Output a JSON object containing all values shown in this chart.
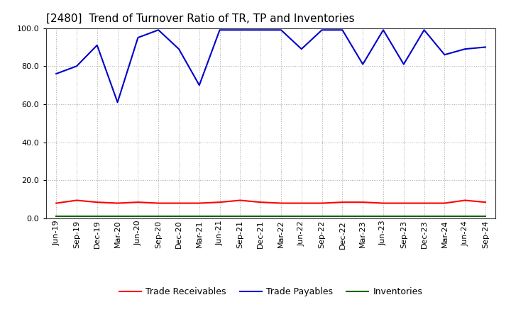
{
  "title": "[2480]  Trend of Turnover Ratio of TR, TP and Inventories",
  "x_labels": [
    "Jun-19",
    "Sep-19",
    "Dec-19",
    "Mar-20",
    "Jun-20",
    "Sep-20",
    "Dec-20",
    "Mar-21",
    "Jun-21",
    "Sep-21",
    "Dec-21",
    "Mar-22",
    "Jun-22",
    "Sep-22",
    "Dec-22",
    "Mar-23",
    "Jun-23",
    "Sep-23",
    "Dec-23",
    "Mar-24",
    "Jun-24",
    "Sep-24"
  ],
  "trade_receivables": [
    8.0,
    9.5,
    8.5,
    8.0,
    8.5,
    8.0,
    8.0,
    8.0,
    8.5,
    9.5,
    8.5,
    8.0,
    8.0,
    8.0,
    8.5,
    8.5,
    8.0,
    8.0,
    8.0,
    8.0,
    9.5,
    8.5
  ],
  "trade_payables": [
    76.0,
    80.0,
    91.0,
    61.0,
    95.0,
    99.0,
    89.0,
    70.0,
    99.0,
    99.0,
    99.0,
    99.0,
    89.0,
    99.0,
    99.0,
    81.0,
    99.0,
    81.0,
    99.0,
    86.0,
    89.0,
    90.0
  ],
  "inventories": [
    1.0,
    1.0,
    1.0,
    1.0,
    1.0,
    1.0,
    1.0,
    1.0,
    1.0,
    1.0,
    1.0,
    1.0,
    1.0,
    1.0,
    1.0,
    1.0,
    1.0,
    1.0,
    1.0,
    1.0,
    1.0,
    1.0
  ],
  "color_tr": "#ff0000",
  "color_tp": "#0000cc",
  "color_inv": "#006600",
  "ylim": [
    0,
    100
  ],
  "yticks": [
    0.0,
    20.0,
    40.0,
    60.0,
    80.0,
    100.0
  ],
  "legend_labels": [
    "Trade Receivables",
    "Trade Payables",
    "Inventories"
  ],
  "background_color": "#ffffff",
  "plot_bg_color": "#ffffff",
  "grid_color": "#aaaaaa",
  "spine_color": "#333333",
  "title_fontsize": 11,
  "tick_fontsize": 8,
  "legend_fontsize": 9,
  "linewidth": 1.5
}
